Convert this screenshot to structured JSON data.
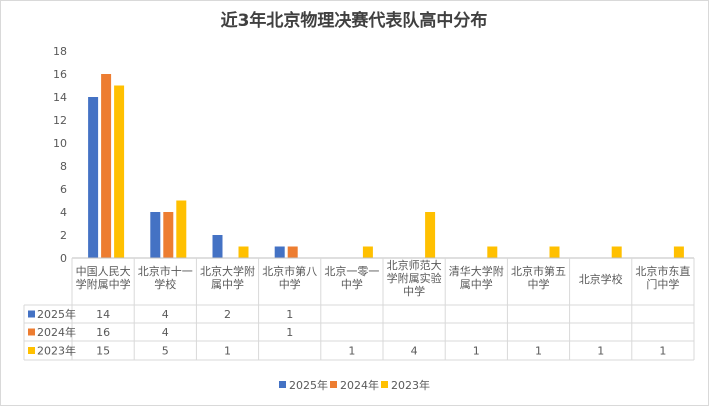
{
  "chart_data": {
    "type": "bar",
    "title": "近3年北京物理决赛代表队高中分布",
    "categories": [
      [
        "中国人民大",
        "学附属中学"
      ],
      [
        "北京市十一",
        "学校"
      ],
      [
        "北京大学附",
        "属中学"
      ],
      [
        "北京市第八",
        "中学"
      ],
      [
        "北京一零一",
        "中学"
      ],
      [
        "北京师范大",
        "学附属实验",
        "中学"
      ],
      [
        "清华大学附",
        "属中学"
      ],
      [
        "北京市第五",
        "中学"
      ],
      [
        "北京学校"
      ],
      [
        "北京市东直",
        "门中学"
      ]
    ],
    "series": [
      {
        "name": "2025年",
        "color": "#4472c4",
        "values": [
          14,
          4,
          2,
          1,
          null,
          null,
          null,
          null,
          null,
          null
        ]
      },
      {
        "name": "2024年",
        "color": "#ed7d31",
        "values": [
          16,
          4,
          null,
          1,
          null,
          null,
          null,
          null,
          null,
          null
        ]
      },
      {
        "name": "2023年",
        "color": "#ffc000",
        "values": [
          15,
          5,
          1,
          null,
          1,
          4,
          1,
          1,
          1,
          1
        ]
      }
    ],
    "ylim": [
      0,
      18
    ],
    "yticks": [
      0,
      2,
      4,
      6,
      8,
      10,
      12,
      14,
      16,
      18
    ],
    "grid": false,
    "legend": "bottom",
    "data_table": true
  }
}
